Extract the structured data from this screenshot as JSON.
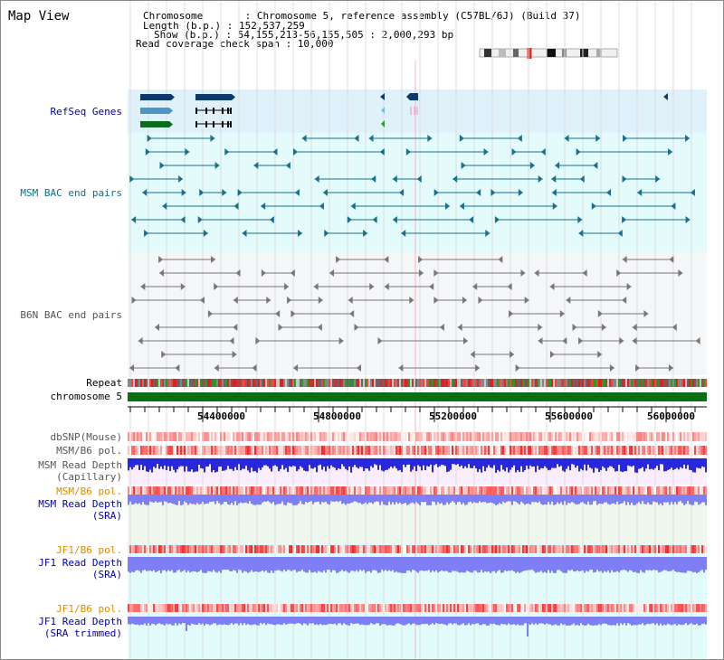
{
  "view_title": "Map View",
  "header": {
    "chromosome_label": "Chromosome       : Chromosome 5, reference assembly (C57BL/6J) (Build 37)",
    "length_label": "Length (b.p.) : 152,537,259",
    "show_label": "Show (b.p.) : 54,155,213-56,155,505 : 2,000,293 bp",
    "coverage_label": "Read coverage check span : 10,000"
  },
  "tracks": {
    "refseq": "RefSeq Genes",
    "msm_bac": "MSM BAC end pairs",
    "b6n_bac": "B6N BAC end pairs",
    "repeat": "Repeat",
    "chromosome": "chromosome 5",
    "dbsnp": "dbSNP(Mouse)",
    "msm_b6_pol_1": "MSM/B6 pol.",
    "msm_read_depth_cap_1": "MSM Read Depth",
    "msm_read_depth_cap_2": "(Capillary)",
    "msm_b6_pol_2": "MSM/B6 pol.",
    "msm_read_depth_sra_1": "MSM Read Depth",
    "msm_read_depth_sra_2": "(SRA)",
    "jf1_b6_pol_1": "JF1/B6 pol.",
    "jf1_read_depth_sra_1": "JF1 Read Depth",
    "jf1_read_depth_sra_2": "(SRA)",
    "jf1_b6_pol_2": "JF1/B6 pol.",
    "jf1_read_depth_trim_1": "JF1 Read Depth",
    "jf1_read_depth_trim_2": "(SRA trimmed)"
  },
  "axis": {
    "ticks": [
      "54400000",
      "54800000",
      "55200000",
      "55600000",
      "56000000"
    ]
  },
  "colors": {
    "refseq_bg": "#dff1fb",
    "gene_navy": "#0d3a6b",
    "gene_steel": "#4b96c4",
    "gene_green": "#0b6e1a",
    "msm_bg": "#e3fbfb",
    "msm_pair": "#1a6f8a",
    "b6n_bg": "#f4f6f8",
    "b6n_pair": "#777777",
    "chromosome_bar": "#0a6e12",
    "depth_blue": "#2727dd",
    "depth_light": "#7f7ff5"
  }
}
